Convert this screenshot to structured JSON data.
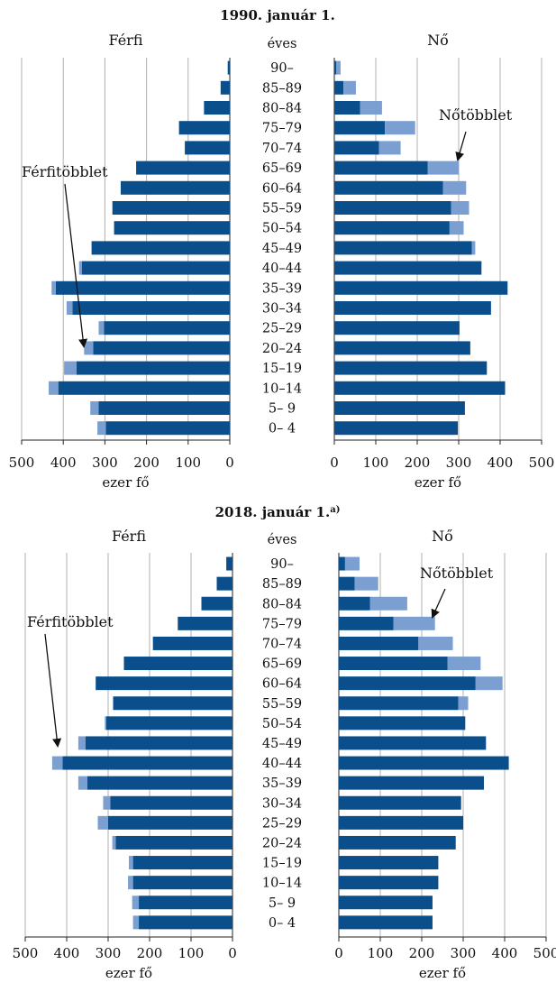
{
  "colors": {
    "base": "#0a4f8c",
    "surplus": "#7a9fd0",
    "grid": "#b0b0b0",
    "axis": "#222222"
  },
  "chart_data": [
    {
      "type": "bar",
      "title": "1990. január 1.",
      "left_label": "Férfi",
      "right_label": "Nő",
      "age_header": "éves",
      "xlabel": "ezer fő",
      "xlim": [
        0,
        500
      ],
      "ticks": [
        500,
        400,
        300,
        200,
        100,
        0
      ],
      "ticks_right": [
        0,
        100,
        200,
        300,
        400,
        500
      ],
      "grid": true,
      "male_annotation": "Férfitöbblet",
      "female_annotation": "Nőtöbblet",
      "categories": [
        "90–",
        "85–89",
        "80–84",
        "75–79",
        "70–74",
        "65–69",
        "60–64",
        "55–59",
        "50–54",
        "45–49",
        "40–44",
        "35–39",
        "30–34",
        "25–29",
        "20–24",
        "15–19",
        "10–14",
        "5– 9",
        "0– 4"
      ],
      "series": [
        {
          "name": "Férfi",
          "values": [
            5,
            22,
            62,
            122,
            108,
            225,
            262,
            282,
            278,
            332,
            362,
            428,
            392,
            315,
            350,
            398,
            435,
            335,
            318
          ]
        },
        {
          "name": "Nő",
          "values": [
            15,
            52,
            115,
            195,
            160,
            300,
            318,
            325,
            312,
            340,
            355,
            418,
            378,
            302,
            328,
            368,
            412,
            315,
            298
          ]
        }
      ]
    },
    {
      "type": "bar",
      "title": "2018. január 1.",
      "title_note": "a)",
      "left_label": "Férfi",
      "right_label": "Nő",
      "age_header": "éves",
      "xlabel": "ezer fő",
      "xlim": [
        0,
        500
      ],
      "ticks": [
        500,
        400,
        300,
        200,
        100,
        0
      ],
      "ticks_right": [
        0,
        100,
        200,
        300,
        400,
        500
      ],
      "grid": true,
      "male_annotation": "Férfitöbblet",
      "female_annotation": "Nőtöbblet",
      "categories": [
        "90–",
        "85–89",
        "80–84",
        "75–79",
        "70–74",
        "65–69",
        "60–64",
        "55–59",
        "50–54",
        "45–49",
        "40–44",
        "35–39",
        "30–34",
        "25–29",
        "20–24",
        "15–19",
        "10–14",
        "5– 9",
        "0– 4"
      ],
      "series": [
        {
          "name": "Férfi",
          "values": [
            15,
            38,
            75,
            132,
            192,
            262,
            330,
            288,
            308,
            372,
            435,
            372,
            312,
            325,
            290,
            250,
            252,
            242,
            240
          ]
        },
        {
          "name": "Nő",
          "values": [
            50,
            95,
            165,
            232,
            275,
            342,
            395,
            312,
            305,
            355,
            410,
            350,
            295,
            300,
            282,
            240,
            240,
            226,
            226
          ]
        }
      ]
    }
  ]
}
